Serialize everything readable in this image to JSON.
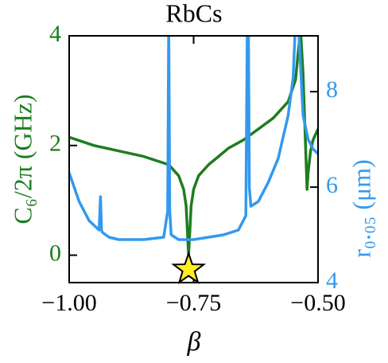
{
  "chart_data": {
    "type": "line",
    "title": "RbCs",
    "xlabel": "β",
    "ylabel": "C₆/2π (GHz)",
    "y2label": "r₀.₀₅ (μm)",
    "xlim": [
      -1.0,
      -0.5
    ],
    "xticks": [
      {
        "value": -1.0,
        "label": "−1.00"
      },
      {
        "value": -0.75,
        "label": "−0.75"
      },
      {
        "value": -0.5,
        "label": "−0.50"
      }
    ],
    "ylim": [
      -0.5,
      4
    ],
    "yticks": [
      0,
      2,
      4
    ],
    "y2lim": [
      4,
      9.17
    ],
    "y2ticks": [
      4,
      6,
      8
    ],
    "series": [
      {
        "name": "C6",
        "color": "#1e7d1e",
        "axis": "y",
        "x": [
          -1.0,
          -0.95,
          -0.9,
          -0.85,
          -0.8,
          -0.78,
          -0.77,
          -0.765,
          -0.76,
          -0.755,
          -0.75,
          -0.74,
          -0.72,
          -0.7,
          -0.68,
          -0.65,
          -0.62,
          -0.59,
          -0.56,
          -0.545,
          -0.54,
          -0.535,
          -0.53,
          -0.525,
          -0.522,
          -0.52,
          -0.515,
          -0.51,
          -0.5
        ],
        "values": [
          2.15,
          2.0,
          1.9,
          1.8,
          1.65,
          1.45,
          1.2,
          0.9,
          0.0,
          0.9,
          1.2,
          1.45,
          1.65,
          1.8,
          1.95,
          2.1,
          2.3,
          2.5,
          2.8,
          3.2,
          3.7,
          4.1,
          3.3,
          2.0,
          1.2,
          1.5,
          1.9,
          2.1,
          2.3
        ]
      },
      {
        "name": "r0.05",
        "color": "#3399ee",
        "axis": "y2",
        "x": [
          -1.0,
          -0.98,
          -0.96,
          -0.94,
          -0.937,
          -0.935,
          -0.933,
          -0.92,
          -0.9,
          -0.85,
          -0.81,
          -0.802,
          -0.8,
          -0.798,
          -0.795,
          -0.78,
          -0.75,
          -0.72,
          -0.69,
          -0.66,
          -0.645,
          -0.642,
          -0.64,
          -0.638,
          -0.635,
          -0.62,
          -0.6,
          -0.58,
          -0.56,
          -0.55,
          -0.545,
          -0.54,
          -0.535,
          -0.53,
          -0.52,
          -0.51,
          -0.5
        ],
        "values": [
          6.3,
          5.7,
          5.3,
          5.1,
          5.8,
          5.1,
          5.05,
          4.95,
          4.9,
          4.9,
          4.95,
          5.5,
          9.5,
          5.5,
          5.0,
          4.9,
          4.9,
          4.95,
          5.0,
          5.1,
          5.4,
          9.5,
          9.5,
          6.0,
          5.6,
          5.7,
          6.1,
          6.6,
          7.5,
          8.3,
          9.5,
          9.5,
          8.5,
          7.5,
          7.0,
          6.8,
          6.7
        ]
      }
    ],
    "marker": {
      "x": -0.76,
      "y": -0.26,
      "color": "#ffee22"
    }
  }
}
